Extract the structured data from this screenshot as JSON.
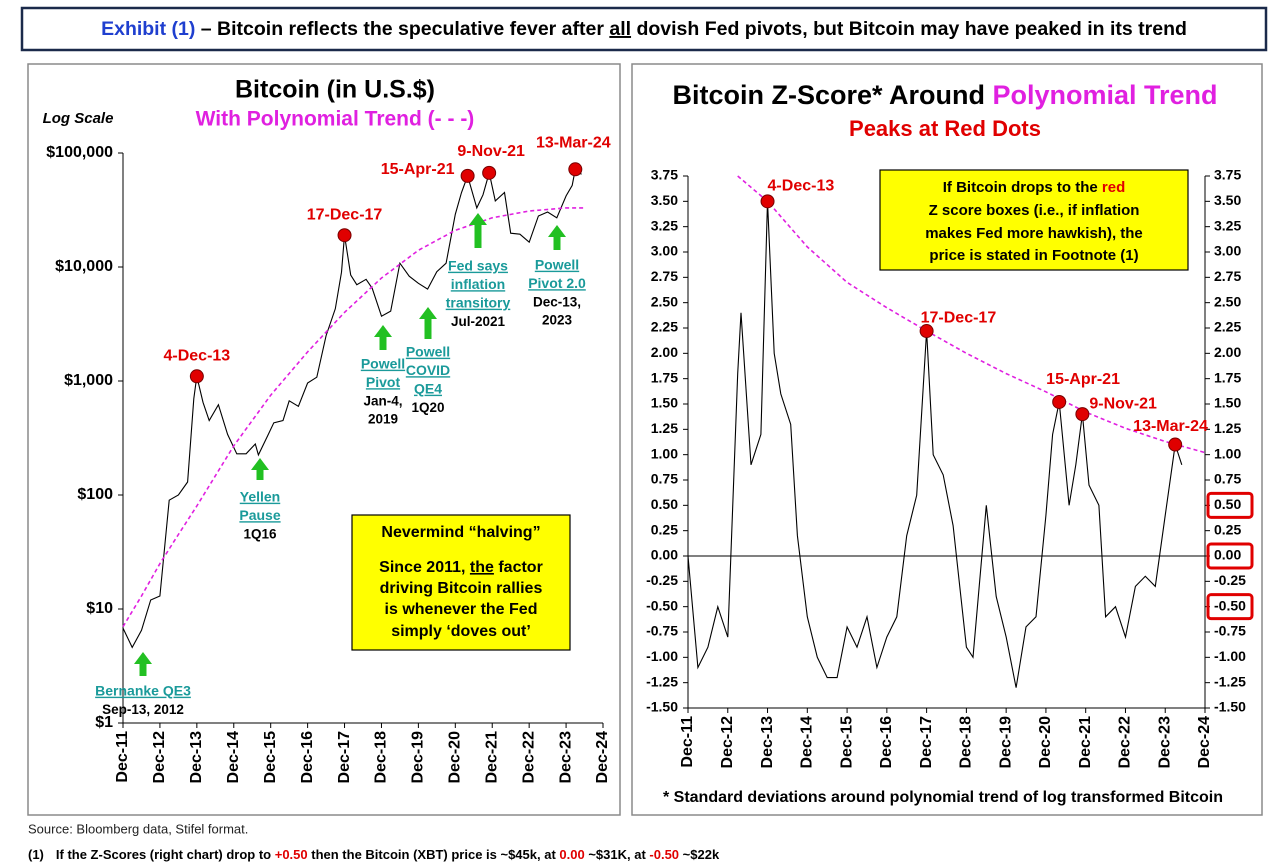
{
  "header": {
    "title_parts": [
      "Exhibit (1)",
      " – Bitcoin reflects the speculative fever after ",
      "all",
      " dovish Fed pivots, but Bitcoin may have peaked in its trend"
    ]
  },
  "chart_data": [
    {
      "type": "line",
      "title": "Bitcoin (in U.S.$)",
      "subtitle": "With Polynomial Trend (- - -)",
      "scale_note": "Log Scale",
      "log_scale": true,
      "grid": false,
      "xlim": [
        "Dec-11",
        "Dec-24"
      ],
      "xticks": [
        "Dec-11",
        "Dec-12",
        "Dec-13",
        "Dec-14",
        "Dec-15",
        "Dec-16",
        "Dec-17",
        "Dec-18",
        "Dec-19",
        "Dec-20",
        "Dec-21",
        "Dec-22",
        "Dec-23",
        "Dec-24"
      ],
      "ylim": [
        1,
        100000
      ],
      "yticks": [
        {
          "value": 1,
          "label": "$1"
        },
        {
          "value": 10,
          "label": "$10"
        },
        {
          "value": 100,
          "label": "$100"
        },
        {
          "value": 1000,
          "label": "$1,000"
        },
        {
          "value": 10000,
          "label": "$10,000"
        },
        {
          "value": 100000,
          "label": "$100,000"
        }
      ],
      "series": [
        {
          "color": "#000000",
          "style": "solid",
          "x": [
            "Dec-11",
            "Mar-12",
            "Jun-12",
            "Sep-12",
            "Dec-12",
            "Mar-13",
            "Jun-13",
            "Sep-13",
            "Nov-13",
            "Dec-13",
            "Feb-14",
            "Apr-14",
            "Jul-14",
            "Oct-14",
            "Jan-15",
            "Apr-15",
            "Jul-15",
            "Aug-15",
            "Nov-15",
            "Jan-16",
            "Apr-16",
            "Jun-16",
            "Sep-16",
            "Dec-16",
            "Mar-17",
            "Jun-17",
            "Sep-17",
            "Nov-17",
            "Dec-17",
            "Feb-18",
            "Apr-18",
            "Jul-18",
            "Sep-18",
            "Dec-18",
            "Mar-19",
            "Jun-19",
            "Sep-19",
            "Dec-19",
            "Mar-20",
            "Jun-20",
            "Sep-20",
            "Dec-20",
            "Feb-21",
            "Apr-21",
            "Jul-21",
            "Sep-21",
            "Nov-21",
            "Jan-22",
            "Apr-22",
            "Jun-22",
            "Sep-22",
            "Dec-22",
            "Mar-23",
            "Jun-23",
            "Sep-23",
            "Dec-23",
            "Feb-24",
            "Mar-24",
            "May-24"
          ],
          "values": [
            6.8,
            4.6,
            6.5,
            12,
            13,
            90,
            100,
            130,
            700,
            1100,
            650,
            450,
            620,
            340,
            230,
            230,
            280,
            225,
            330,
            430,
            450,
            670,
            600,
            960,
            1080,
            2500,
            4300,
            9000,
            19000,
            8500,
            7000,
            7800,
            6500,
            3700,
            4100,
            10800,
            8300,
            7200,
            6400,
            9100,
            10800,
            29000,
            45000,
            63000,
            33000,
            43000,
            67000,
            38000,
            45000,
            19800,
            19400,
            16500,
            28000,
            30400,
            27000,
            42000,
            52000,
            72000,
            65000
          ]
        },
        {
          "color": "#e020e0",
          "style": "dashed",
          "x": [
            "Dec-11",
            "Jun-12",
            "Dec-12",
            "Jun-13",
            "Dec-13",
            "Dec-14",
            "Dec-15",
            "Dec-16",
            "Dec-17",
            "Dec-18",
            "Dec-19",
            "Dec-20",
            "Dec-21",
            "Dec-22",
            "Dec-23",
            "Jun-24"
          ],
          "values": [
            7,
            13,
            25,
            45,
            80,
            270,
            750,
            1800,
            4000,
            8000,
            14000,
            21000,
            27000,
            31000,
            33000,
            33000
          ]
        }
      ],
      "peaks": [
        {
          "label": "4-Dec-13",
          "x": "Dec-13"
        },
        {
          "label": "17-Dec-17",
          "x": "Dec-17"
        },
        {
          "label": "15-Apr-21",
          "x": "Apr-21"
        },
        {
          "label": "9-Nov-21",
          "x": "Nov-21"
        },
        {
          "label": "13-Mar-24",
          "x": "Mar-24"
        }
      ],
      "arrows": [
        {
          "link": [
            "Bernanke QE3"
          ],
          "note": [
            "Sep-13, 2012"
          ]
        },
        {
          "link": [
            "Yellen",
            "Pause"
          ],
          "note": [
            "1Q16"
          ]
        },
        {
          "link": [
            "Powell",
            "Pivot"
          ],
          "note": [
            "Jan-4,",
            "2019"
          ]
        },
        {
          "link": [
            "Powell",
            "COVID",
            "QE4"
          ],
          "note": [
            "1Q20"
          ]
        },
        {
          "link": [
            "Fed says",
            "inflation",
            "transitory"
          ],
          "note": [
            "Jul-2021"
          ]
        },
        {
          "link": [
            "Powell",
            "Pivot 2.0"
          ],
          "note": [
            "Dec-13,",
            "2023"
          ]
        }
      ],
      "callout": {
        "heading": "Nevermind “halving”",
        "lines": [
          [
            "Since 2011, ",
            "the",
            " factor"
          ],
          [
            "driving Bitcoin rallies"
          ],
          [
            "is whenever the Fed"
          ],
          [
            "simply ‘doves out’"
          ]
        ]
      }
    },
    {
      "type": "line",
      "title_parts": [
        "Bitcoin Z-Score* Around ",
        "Polynomial Trend"
      ],
      "subtitle": "Peaks at Red Dots",
      "grid": false,
      "zero_line": true,
      "xlim": [
        "Dec-11",
        "Dec-24"
      ],
      "xticks": [
        "Dec-11",
        "Dec-12",
        "Dec-13",
        "Dec-14",
        "Dec-15",
        "Dec-16",
        "Dec-17",
        "Dec-18",
        "Dec-19",
        "Dec-20",
        "Dec-21",
        "Dec-22",
        "Dec-23",
        "Dec-24"
      ],
      "ylim": [
        -1.5,
        3.75
      ],
      "yticks": [
        {
          "value": 3.75,
          "label": "3.75"
        },
        {
          "value": 3.5,
          "label": "3.50"
        },
        {
          "value": 3.25,
          "label": "3.25"
        },
        {
          "value": 3,
          "label": "3.00"
        },
        {
          "value": 2.75,
          "label": "2.75"
        },
        {
          "value": 2.5,
          "label": "2.50"
        },
        {
          "value": 2.25,
          "label": "2.25"
        },
        {
          "value": 2,
          "label": "2.00"
        },
        {
          "value": 1.75,
          "label": "1.75"
        },
        {
          "value": 1.5,
          "label": "1.50"
        },
        {
          "value": 1.25,
          "label": "1.25"
        },
        {
          "value": 1,
          "label": "1.00"
        },
        {
          "value": 0.75,
          "label": "0.75"
        },
        {
          "value": 0.5,
          "label": "0.50",
          "right_boxed": true
        },
        {
          "value": 0.25,
          "label": "0.25"
        },
        {
          "value": 0,
          "label": "0.00",
          "right_boxed": true
        },
        {
          "value": -0.25,
          "label": "-0.25"
        },
        {
          "value": -0.5,
          "label": "-0.50",
          "right_boxed": true
        },
        {
          "value": -0.75,
          "label": "-0.75"
        },
        {
          "value": -1,
          "label": "-1.00"
        },
        {
          "value": -1.25,
          "label": "-1.25"
        },
        {
          "value": -1.5,
          "label": "-1.50"
        }
      ],
      "series": [
        {
          "color": "#000000",
          "style": "solid",
          "x": [
            "Dec-11",
            "Mar-12",
            "Jun-12",
            "Sep-12",
            "Dec-12",
            "Mar-13",
            "Apr-13",
            "Jul-13",
            "Oct-13",
            "Dec-13",
            "Feb-14",
            "Apr-14",
            "Jul-14",
            "Sep-14",
            "Dec-14",
            "Mar-15",
            "Jun-15",
            "Sep-15",
            "Dec-15",
            "Mar-16",
            "Jun-16",
            "Sep-16",
            "Dec-16",
            "Mar-17",
            "Jun-17",
            "Sep-17",
            "Dec-17",
            "Feb-18",
            "May-18",
            "Aug-18",
            "Dec-18",
            "Feb-19",
            "Jun-19",
            "Sep-19",
            "Dec-19",
            "Mar-20",
            "Jun-20",
            "Sep-20",
            "Dec-20",
            "Feb-21",
            "Apr-21",
            "Jul-21",
            "Sep-21",
            "Nov-21",
            "Jan-22",
            "Apr-22",
            "Jun-22",
            "Sep-22",
            "Dec-22",
            "Mar-23",
            "Jun-23",
            "Sep-23",
            "Dec-23",
            "Mar-24",
            "May-24"
          ],
          "values": [
            0.0,
            -1.1,
            -0.9,
            -0.5,
            -0.8,
            1.8,
            2.4,
            0.9,
            1.2,
            3.5,
            2.0,
            1.6,
            1.3,
            0.2,
            -0.6,
            -1.0,
            -1.2,
            -1.2,
            -0.7,
            -0.9,
            -0.6,
            -1.1,
            -0.8,
            -0.6,
            0.2,
            0.6,
            2.22,
            1.0,
            0.8,
            0.3,
            -0.9,
            -1.0,
            0.5,
            -0.4,
            -0.8,
            -1.3,
            -0.7,
            -0.6,
            0.4,
            1.2,
            1.52,
            0.5,
            0.9,
            1.4,
            0.7,
            0.5,
            -0.6,
            -0.5,
            -0.8,
            -0.3,
            -0.2,
            -0.3,
            0.4,
            1.1,
            0.9
          ]
        },
        {
          "color": "#e020e0",
          "style": "dashed",
          "x": [
            "Mar-13",
            "Dec-13",
            "Dec-14",
            "Dec-15",
            "Dec-16",
            "Dec-17",
            "Dec-18",
            "Dec-19",
            "Dec-20",
            "Dec-21",
            "Dec-22",
            "Dec-23",
            "Dec-24"
          ],
          "values": [
            3.75,
            3.5,
            3.05,
            2.7,
            2.45,
            2.22,
            2.0,
            1.8,
            1.62,
            1.42,
            1.26,
            1.13,
            1.02
          ]
        }
      ],
      "peaks": [
        {
          "label": "4-Dec-13",
          "x": "Dec-13"
        },
        {
          "label": "17-Dec-17",
          "x": "Dec-17"
        },
        {
          "label": "15-Apr-21",
          "x": "Apr-21"
        },
        {
          "label": "9-Nov-21",
          "x": "Nov-21"
        },
        {
          "label": "13-Mar-24",
          "x": "Mar-24"
        }
      ],
      "callout": {
        "lines": [
          [
            "If Bitcoin drops to the ",
            "red"
          ],
          [
            "Z score boxes (i.e., if inflation"
          ],
          [
            "makes Fed more hawkish), the"
          ],
          [
            "price is stated in Footnote (1)"
          ]
        ]
      },
      "footnote": "* Standard deviations around polynomial trend of log transformed Bitcoin"
    }
  ],
  "source": "Source: Bloomberg data, Stifel format.",
  "footnote": {
    "marker": "(1)",
    "parts": [
      "If the Z-Scores (right chart) drop to ",
      "+0.50",
      " then the Bitcoin (XBT) price is ~$45k, at ",
      "0.00",
      " ~$31K, at ",
      "-0.50",
      " ~$22k"
    ]
  }
}
